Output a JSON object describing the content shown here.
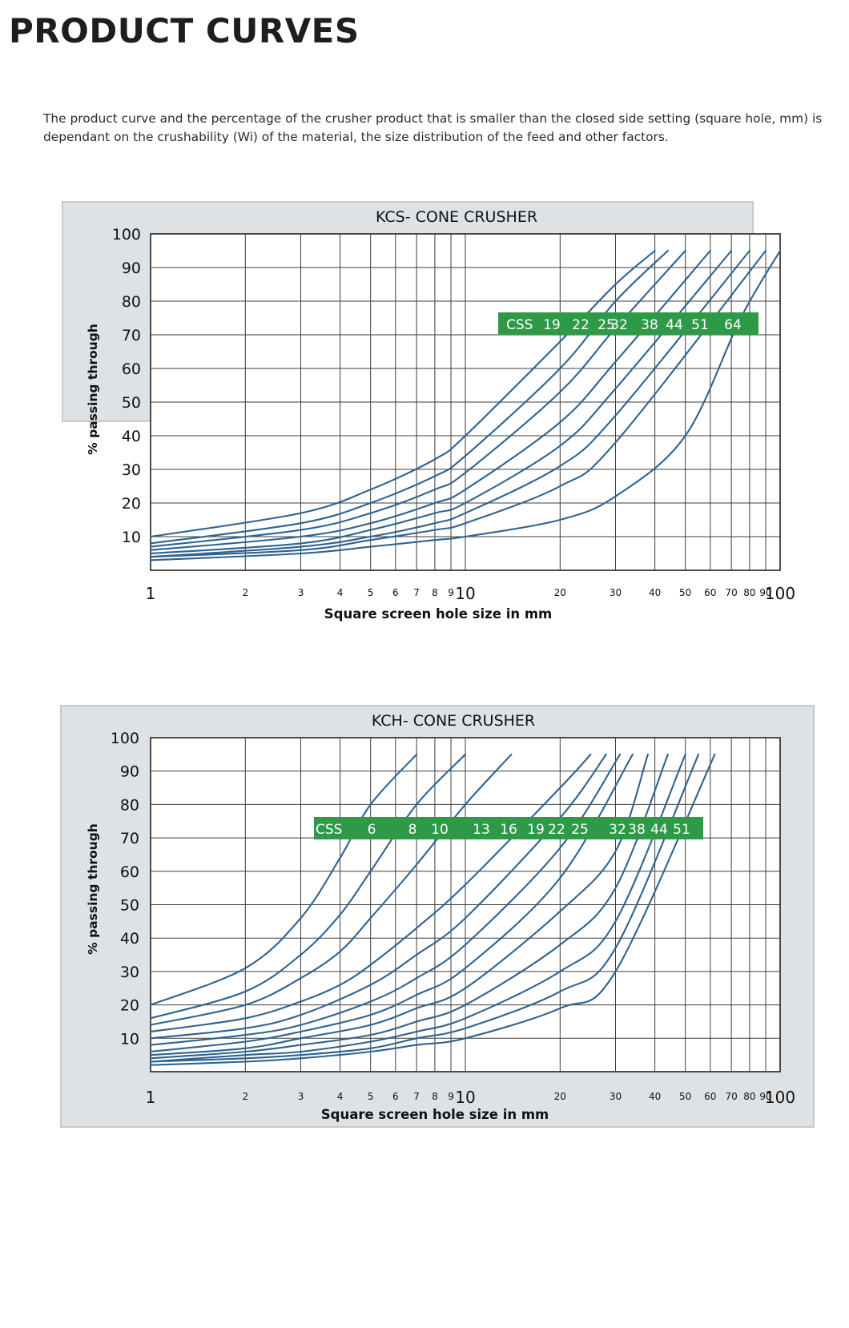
{
  "page": {
    "title": "PRODUCT CURVES",
    "intro": "The product curve and the percentage of the crusher product that is smaller than the closed side setting (square hole, mm) is dependant on the crushability (Wi) of the material, the size distribution of the feed and other factors."
  },
  "colors": {
    "curve": "#2f628f",
    "css_box": "#2e9a48",
    "panel": "#dfe2e5"
  },
  "chart_data": [
    {
      "id": "kcs",
      "type": "line",
      "title": "KCS- CONE CRUSHER",
      "xlabel": "Square screen hole size in mm",
      "ylabel": "% passing through",
      "x_scale": "log",
      "xlim": [
        1,
        100
      ],
      "ylim": [
        0,
        100
      ],
      "grid": true,
      "y_ticks": [
        "100",
        "90",
        "80",
        "70",
        "60",
        "50",
        "40",
        "30",
        "20",
        "10"
      ],
      "x_ticks": [
        "1",
        "2",
        "3",
        "4",
        "5",
        "6",
        "7",
        "8",
        "9",
        "10",
        "20",
        "30",
        "40",
        "50",
        "60",
        "70",
        "80",
        "90",
        "100"
      ],
      "css_label": "CSS",
      "css_values": [
        "19",
        "22",
        "25",
        "32",
        "38",
        "44",
        "51",
        "64"
      ],
      "series": [
        {
          "css": "19",
          "points": [
            [
              1,
              10
            ],
            [
              3,
              17
            ],
            [
              5,
              24
            ],
            [
              8,
              33
            ],
            [
              10,
              40
            ],
            [
              20,
              68
            ],
            [
              30,
              85
            ],
            [
              40,
              95
            ]
          ]
        },
        {
          "css": "22",
          "points": [
            [
              1,
              8
            ],
            [
              3,
              14
            ],
            [
              5,
              20
            ],
            [
              8,
              28
            ],
            [
              10,
              34
            ],
            [
              20,
              60
            ],
            [
              30,
              80
            ],
            [
              44,
              95
            ]
          ]
        },
        {
          "css": "25",
          "points": [
            [
              1,
              7
            ],
            [
              3,
              12
            ],
            [
              5,
              17
            ],
            [
              8,
              24
            ],
            [
              10,
              29
            ],
            [
              20,
              53
            ],
            [
              30,
              72
            ],
            [
              50,
              95
            ]
          ]
        },
        {
          "css": "32",
          "points": [
            [
              1,
              6
            ],
            [
              3,
              10
            ],
            [
              5,
              14
            ],
            [
              8,
              20
            ],
            [
              10,
              24
            ],
            [
              20,
              44
            ],
            [
              30,
              62
            ],
            [
              60,
              95
            ]
          ]
        },
        {
          "css": "38",
          "points": [
            [
              1,
              5
            ],
            [
              3,
              8
            ],
            [
              5,
              12
            ],
            [
              8,
              17
            ],
            [
              10,
              20
            ],
            [
              20,
              37
            ],
            [
              30,
              54
            ],
            [
              70,
              95
            ]
          ]
        },
        {
          "css": "44",
          "points": [
            [
              1,
              4
            ],
            [
              3,
              7
            ],
            [
              5,
              10
            ],
            [
              8,
              14
            ],
            [
              10,
              17
            ],
            [
              20,
              31
            ],
            [
              30,
              46
            ],
            [
              80,
              95
            ]
          ]
        },
        {
          "css": "51",
          "points": [
            [
              1,
              4
            ],
            [
              3,
              6
            ],
            [
              5,
              9
            ],
            [
              8,
              12
            ],
            [
              10,
              14
            ],
            [
              20,
              25
            ],
            [
              30,
              38
            ],
            [
              90,
              95
            ]
          ]
        },
        {
          "css": "64",
          "points": [
            [
              1,
              3
            ],
            [
              3,
              5
            ],
            [
              5,
              7
            ],
            [
              8,
              9
            ],
            [
              10,
              10
            ],
            [
              20,
              15
            ],
            [
              30,
              22
            ],
            [
              50,
              40
            ],
            [
              75,
              75
            ],
            [
              100,
              95
            ]
          ]
        }
      ]
    },
    {
      "id": "kch",
      "type": "line",
      "title": "KCH- CONE CRUSHER",
      "xlabel": "Square screen hole size in mm",
      "ylabel": "% passing through",
      "x_scale": "log",
      "xlim": [
        1,
        100
      ],
      "ylim": [
        0,
        100
      ],
      "grid": true,
      "y_ticks": [
        "100",
        "90",
        "80",
        "70",
        "60",
        "50",
        "40",
        "30",
        "20",
        "10"
      ],
      "x_ticks": [
        "1",
        "2",
        "3",
        "4",
        "5",
        "6",
        "7",
        "8",
        "9",
        "10",
        "20",
        "30",
        "40",
        "50",
        "60",
        "70",
        "80",
        "90",
        "100"
      ],
      "css_label": "CSS",
      "css_values": [
        "6",
        "8",
        "10",
        "13",
        "16",
        "19",
        "22",
        "25",
        "32",
        "38",
        "44",
        "51"
      ],
      "series": [
        {
          "css": "6",
          "points": [
            [
              1,
              20
            ],
            [
              2,
              31
            ],
            [
              3,
              46
            ],
            [
              4,
              64
            ],
            [
              5,
              80
            ],
            [
              7,
              95
            ]
          ]
        },
        {
          "css": "8",
          "points": [
            [
              1,
              16
            ],
            [
              2,
              24
            ],
            [
              3,
              35
            ],
            [
              4,
              47
            ],
            [
              5,
              60
            ],
            [
              7,
              80
            ],
            [
              10,
              95
            ]
          ]
        },
        {
          "css": "10",
          "points": [
            [
              1,
              14
            ],
            [
              2,
              20
            ],
            [
              3,
              28
            ],
            [
              4,
              36
            ],
            [
              5,
              46
            ],
            [
              7,
              62
            ],
            [
              10,
              80
            ],
            [
              14,
              95
            ]
          ]
        },
        {
          "css": "13",
          "points": [
            [
              1,
              12
            ],
            [
              2,
              16
            ],
            [
              3,
              21
            ],
            [
              4,
              26
            ],
            [
              5,
              32
            ],
            [
              7,
              43
            ],
            [
              10,
              56
            ],
            [
              20,
              85
            ],
            [
              25,
              95
            ]
          ]
        },
        {
          "css": "16",
          "points": [
            [
              1,
              10
            ],
            [
              2,
              13
            ],
            [
              3,
              17
            ],
            [
              5,
              26
            ],
            [
              7,
              35
            ],
            [
              10,
              46
            ],
            [
              20,
              76
            ],
            [
              28,
              95
            ]
          ]
        },
        {
          "css": "19",
          "points": [
            [
              1,
              8
            ],
            [
              2,
              11
            ],
            [
              3,
              14
            ],
            [
              5,
              21
            ],
            [
              7,
              28
            ],
            [
              10,
              38
            ],
            [
              20,
              67
            ],
            [
              31,
              95
            ]
          ]
        },
        {
          "css": "22",
          "points": [
            [
              1,
              6
            ],
            [
              2,
              9
            ],
            [
              3,
              12
            ],
            [
              5,
              17
            ],
            [
              7,
              23
            ],
            [
              10,
              31
            ],
            [
              20,
              58
            ],
            [
              34,
              95
            ]
          ]
        },
        {
          "css": "25",
          "points": [
            [
              1,
              5
            ],
            [
              2,
              7
            ],
            [
              3,
              10
            ],
            [
              5,
              14
            ],
            [
              7,
              19
            ],
            [
              10,
              25
            ],
            [
              20,
              48
            ],
            [
              30,
              66
            ],
            [
              38,
              95
            ]
          ]
        },
        {
          "css": "32",
          "points": [
            [
              1,
              4
            ],
            [
              2,
              6
            ],
            [
              3,
              8
            ],
            [
              5,
              11
            ],
            [
              7,
              15
            ],
            [
              10,
              20
            ],
            [
              20,
              38
            ],
            [
              30,
              55
            ],
            [
              44,
              95
            ]
          ]
        },
        {
          "css": "38",
          "points": [
            [
              1,
              3
            ],
            [
              2,
              5
            ],
            [
              3,
              6
            ],
            [
              5,
              9
            ],
            [
              7,
              12
            ],
            [
              10,
              16
            ],
            [
              20,
              30
            ],
            [
              30,
              45
            ],
            [
              50,
              95
            ]
          ]
        },
        {
          "css": "44",
          "points": [
            [
              1,
              3
            ],
            [
              2,
              4
            ],
            [
              3,
              5
            ],
            [
              5,
              7
            ],
            [
              7,
              10
            ],
            [
              10,
              13
            ],
            [
              20,
              24
            ],
            [
              30,
              37
            ],
            [
              55,
              95
            ]
          ]
        },
        {
          "css": "51",
          "points": [
            [
              1,
              2
            ],
            [
              2,
              3
            ],
            [
              3,
              4
            ],
            [
              5,
              6
            ],
            [
              7,
              8
            ],
            [
              10,
              10
            ],
            [
              20,
              19
            ],
            [
              30,
              30
            ],
            [
              62,
              95
            ]
          ]
        }
      ]
    }
  ]
}
